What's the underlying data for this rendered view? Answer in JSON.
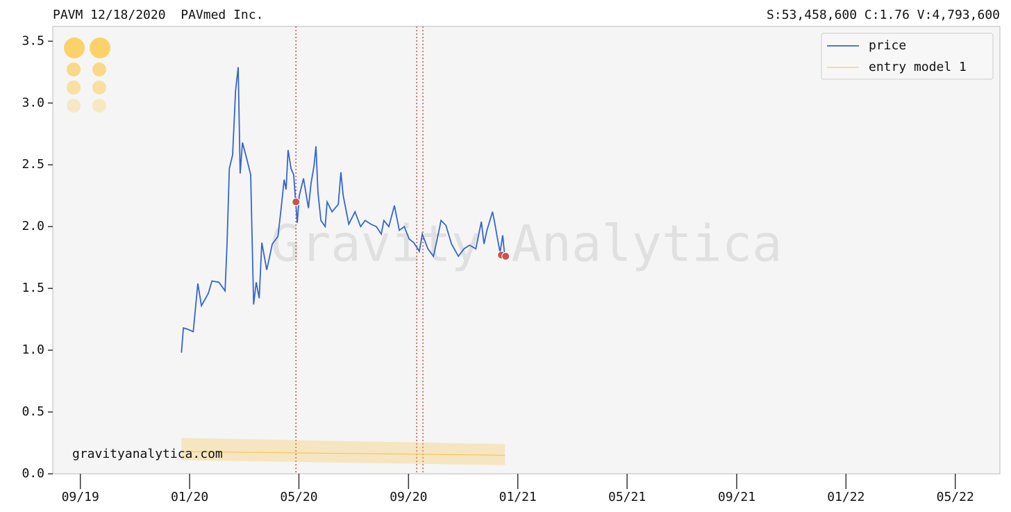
{
  "chart_data": {
    "type": "line",
    "title": "PAVM 12/18/2020  PAVmed Inc.",
    "subtitle": "S:53,458,600 C:1.76 V:4,793,600",
    "watermark": "Gravity Analytica",
    "footer": "gravityanalytica.com",
    "xlim": [
      2019.583,
      2022.469
    ],
    "xticks": [
      {
        "value": 2019.667,
        "label": "09/19"
      },
      {
        "value": 2020,
        "label": "01/20"
      },
      {
        "value": 2020.333,
        "label": "05/20"
      },
      {
        "value": 2020.667,
        "label": "09/20"
      },
      {
        "value": 2021,
        "label": "01/21"
      },
      {
        "value": 2021.333,
        "label": "05/21"
      },
      {
        "value": 2021.667,
        "label": "09/21"
      },
      {
        "value": 2022,
        "label": "01/22"
      },
      {
        "value": 2022.333,
        "label": "05/22"
      }
    ],
    "ylim": [
      0,
      3.62
    ],
    "yticks": [
      {
        "value": 0,
        "label": "0.0"
      },
      0.5,
      {
        "value": 1,
        "label": "1.0"
      },
      1.5,
      {
        "value": 2,
        "label": "2.0"
      },
      2.5,
      {
        "value": 3,
        "label": "3.0"
      },
      3.5
    ],
    "legend": "upper right",
    "series": [
      {
        "name": "price",
        "color": "#3366cc",
        "x": [
          2019.975,
          2019.981,
          2019.994,
          2020.011,
          2020.025,
          2020.036,
          2020.057,
          2020.068,
          2020.089,
          2020.108,
          2020.114,
          2020.121,
          2020.131,
          2020.14,
          2020.148,
          2020.154,
          2020.161,
          2020.174,
          2020.186,
          2020.195,
          2020.203,
          2020.212,
          2020.22,
          2020.235,
          2020.252,
          2020.269,
          2020.279,
          2020.288,
          2020.294,
          2020.3,
          2020.309,
          2020.317,
          2020.328,
          2020.334,
          2020.347,
          2020.362,
          2020.37,
          2020.379,
          2020.385,
          2020.391,
          2020.4,
          2020.413,
          2020.419,
          2020.434,
          2020.453,
          2020.461,
          2020.468,
          2020.485,
          2020.504,
          2020.521,
          2020.535,
          2020.552,
          2020.569,
          2020.584,
          2020.592,
          2020.607,
          2020.624,
          2020.639,
          2020.654,
          2020.669,
          2020.683,
          2020.7,
          2020.709,
          2020.726,
          2020.743,
          2020.76,
          2020.766,
          2020.781,
          2020.798,
          2020.819,
          2020.836,
          2020.853,
          2020.872,
          2020.889,
          2020.897,
          2020.906,
          2020.923,
          2020.929,
          2020.937,
          2020.946,
          2020.954,
          2020.961
        ],
        "values": [
          0.98,
          1.18,
          1.17,
          1.15,
          1.54,
          1.36,
          1.46,
          1.56,
          1.55,
          1.48,
          1.86,
          2.47,
          2.58,
          3.1,
          3.29,
          2.43,
          2.68,
          2.55,
          2.42,
          1.37,
          1.55,
          1.42,
          1.87,
          1.65,
          1.86,
          1.92,
          2.15,
          2.38,
          2.3,
          2.62,
          2.47,
          2.42,
          2.03,
          2.25,
          2.39,
          2.15,
          2.35,
          2.49,
          2.65,
          2.28,
          2.05,
          2.0,
          2.2,
          2.12,
          2.18,
          2.44,
          2.25,
          2.02,
          2.12,
          2.0,
          2.05,
          2.02,
          2.0,
          1.94,
          2.05,
          2.0,
          2.17,
          1.97,
          2.0,
          1.9,
          1.87,
          1.8,
          1.94,
          1.82,
          1.76,
          1.97,
          2.05,
          2.01,
          1.86,
          1.76,
          1.82,
          1.85,
          1.82,
          2.04,
          1.86,
          1.97,
          2.12,
          2.04,
          1.92,
          1.79,
          1.93,
          1.74
        ]
      },
      {
        "name": "entry model 1",
        "color": "#f5c04a",
        "x": [
          2019.975,
          2020.961
        ],
        "values": [
          0.18,
          0.15
        ],
        "band_low": [
          0.11,
          0.07
        ],
        "band_high": [
          0.29,
          0.24
        ]
      }
    ],
    "markers": {
      "color": "#d0504a",
      "x": [
        2020.324,
        2020.95,
        2020.963
      ],
      "values": [
        2.2,
        1.77,
        1.76
      ]
    },
    "vlines": {
      "color": "#d0504a",
      "x": [
        2020.324,
        2020.692,
        2020.711
      ]
    }
  }
}
